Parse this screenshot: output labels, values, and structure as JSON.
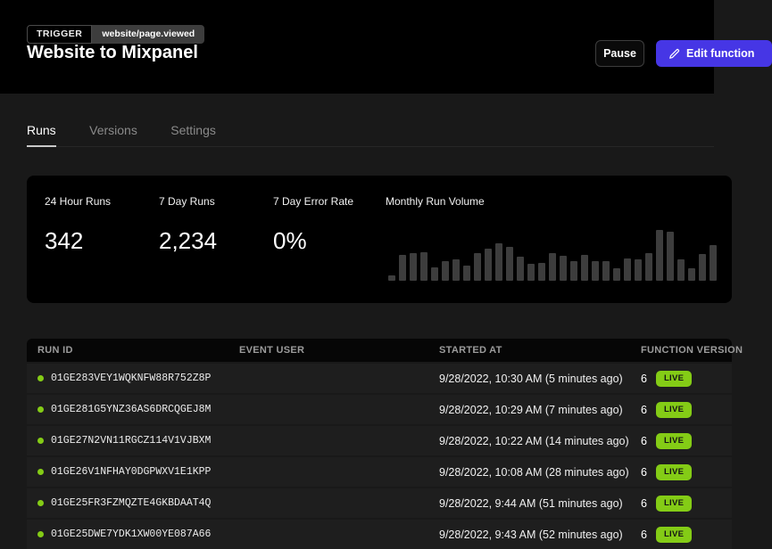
{
  "header": {
    "trigger_label": "TRIGGER",
    "trigger_event": "website/page.viewed",
    "title": "Website to Mixpanel",
    "pause_label": "Pause",
    "edit_label": "Edit function"
  },
  "tabs": [
    {
      "label": "Runs",
      "active": true
    },
    {
      "label": "Versions",
      "active": false
    },
    {
      "label": "Settings",
      "active": false
    }
  ],
  "stats": {
    "items": [
      {
        "label": "24 Hour Runs",
        "value": "342"
      },
      {
        "label": "7 Day Runs",
        "value": "2,234"
      },
      {
        "label": "7 Day Error Rate",
        "value": "0%"
      }
    ]
  },
  "chart_data": {
    "type": "bar",
    "title": "Monthly Run Volume",
    "values": [
      10,
      47,
      50,
      52,
      25,
      35,
      39,
      28,
      50,
      58,
      67,
      61,
      44,
      30,
      32,
      50,
      45,
      35,
      47,
      36,
      35,
      22,
      40,
      39,
      50,
      92,
      88,
      38,
      22,
      48,
      65
    ],
    "ylim": [
      0,
      100
    ],
    "unit": "percent-of-max",
    "xlabel": "",
    "ylabel": "",
    "grid": false,
    "legend": false,
    "note": "unlabeled volume sparkline, right edge clipped by viewport"
  },
  "table": {
    "columns": [
      "RUN ID",
      "EVENT USER",
      "STARTED AT",
      "FUNCTION VERSION"
    ],
    "rows": [
      {
        "run_id": "01GE283VEY1WQKNFW88R752Z8P",
        "event_user": "",
        "started_at": "9/28/2022, 10:30 AM (5 minutes ago)",
        "version": "6",
        "status": "LIVE"
      },
      {
        "run_id": "01GE281G5YNZ36AS6DRCQGEJ8M",
        "event_user": "",
        "started_at": "9/28/2022, 10:29 AM (7 minutes ago)",
        "version": "6",
        "status": "LIVE"
      },
      {
        "run_id": "01GE27N2VN11RGCZ114V1VJBXM",
        "event_user": "",
        "started_at": "9/28/2022, 10:22 AM (14 minutes ago)",
        "version": "6",
        "status": "LIVE"
      },
      {
        "run_id": "01GE26V1NFHAY0DGPWXV1E1KPP",
        "event_user": "",
        "started_at": "9/28/2022, 10:08 AM (28 minutes ago)",
        "version": "6",
        "status": "LIVE"
      },
      {
        "run_id": "01GE25FR3FZMQZTE4GKBDAAT4Q",
        "event_user": "",
        "started_at": "9/28/2022, 9:44 AM (51 minutes ago)",
        "version": "6",
        "status": "LIVE"
      },
      {
        "run_id": "01GE25DWE7YDK1XW00YE087A66",
        "event_user": "",
        "started_at": "9/28/2022, 9:43 AM (52 minutes ago)",
        "version": "6",
        "status": "LIVE"
      }
    ]
  },
  "colors": {
    "accent": "#4636e5",
    "live_badge": "#84cc16",
    "status_dot": "#84cc16",
    "page_bg": "#191919",
    "panel_bg": "#000000",
    "row_bg": "#1e1e1e",
    "chart_bar": "#3d3d3d"
  },
  "icons": {
    "edit": "pencil-icon",
    "run_status": "status-dot-icon"
  }
}
